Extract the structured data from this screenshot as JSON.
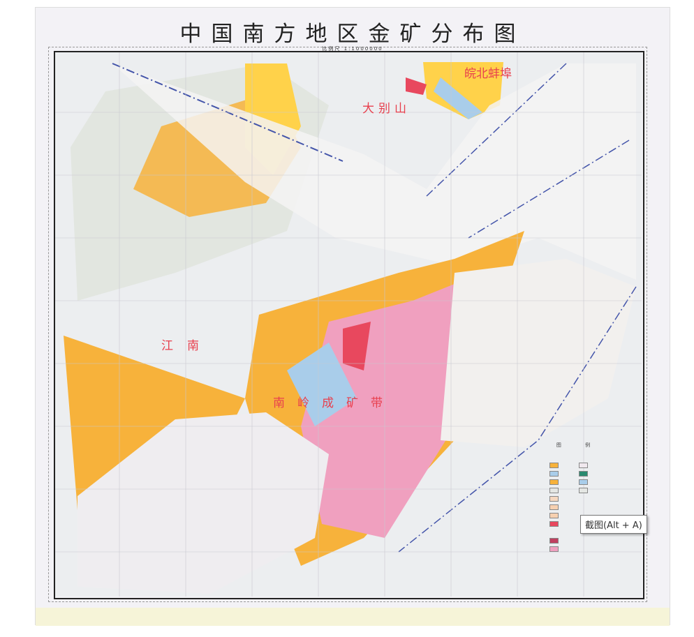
{
  "map": {
    "title": "中国南方地区金矿分布图",
    "scale": "比例尺 1:1000000",
    "region_labels": [
      "皖北蚌埠",
      "大别山",
      "江南",
      "南岭成矿带"
    ],
    "legend_title": "图 例",
    "colors": {
      "orange": "#f7b23b",
      "yellow": "#ffd24a",
      "blue": "#a9cdea",
      "pink": "#f0a0bf",
      "red": "#e8485e",
      "grey": "#e4e6e3",
      "label_red": "#e8404e"
    }
  },
  "tooltip": {
    "text": "截图(Alt + A)"
  }
}
